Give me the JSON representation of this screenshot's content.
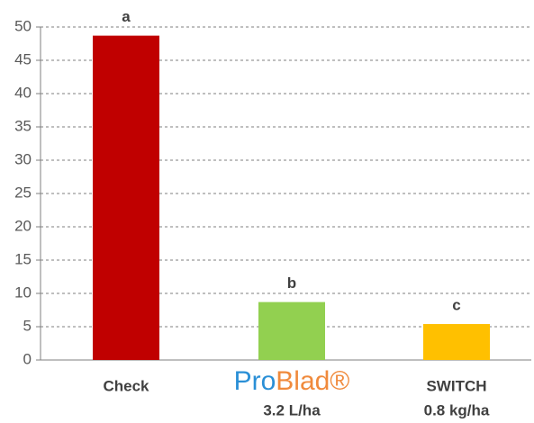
{
  "chart_data": {
    "type": "bar",
    "categories": [
      "Check",
      "ProBlad®",
      "SWITCH"
    ],
    "category_sublabels": [
      null,
      "3.2 L/ha",
      "0.8 kg/ha"
    ],
    "values": [
      48.7,
      8.7,
      5.4
    ],
    "letters": [
      "a",
      "b",
      "c"
    ],
    "colors": [
      "#c00000",
      "#92d050",
      "#ffc000"
    ],
    "ylim": [
      0,
      50
    ],
    "yticks": [
      0,
      5,
      10,
      15,
      20,
      25,
      30,
      35,
      40,
      45,
      50
    ],
    "grid": true
  }
}
